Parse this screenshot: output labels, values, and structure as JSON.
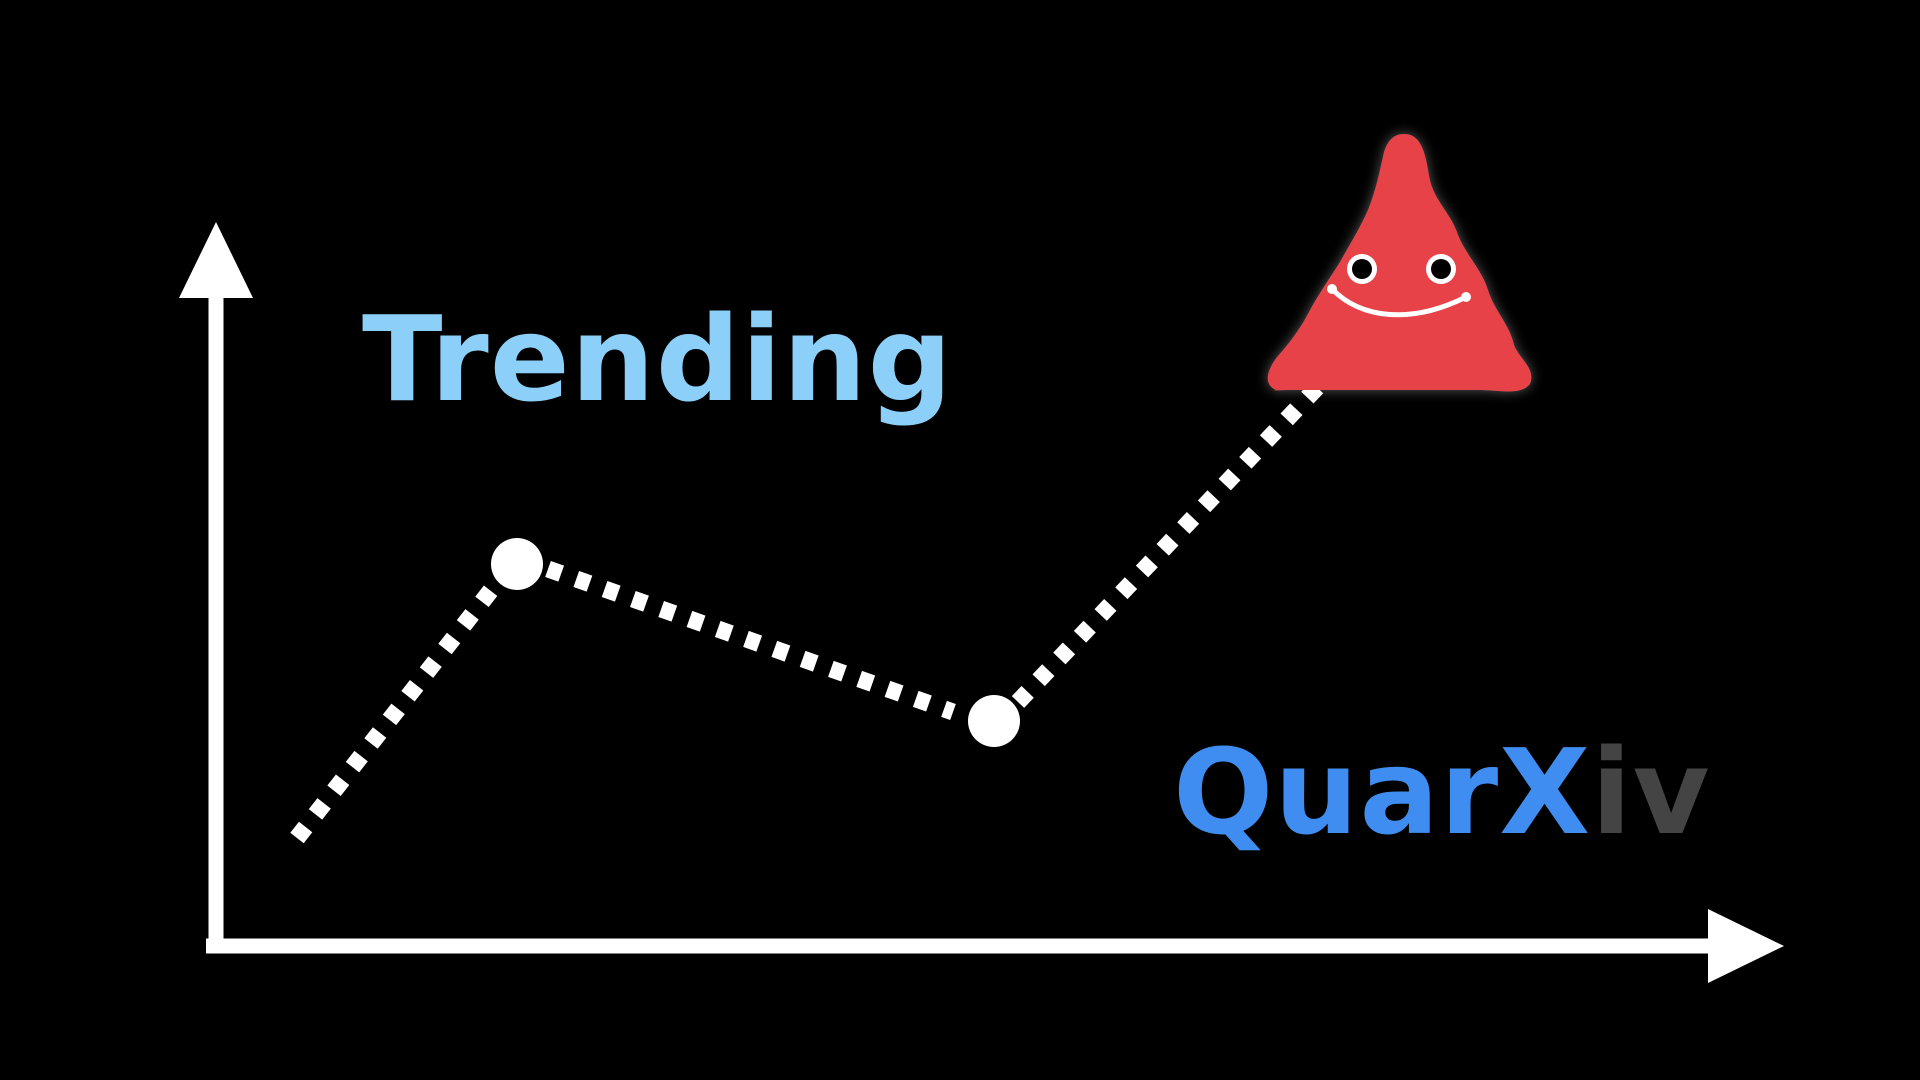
{
  "heading": "Trending",
  "brand": {
    "part_main": "QuarX",
    "part_suffix": "iv"
  },
  "colors": {
    "background": "#000000",
    "axes": "#ffffff",
    "trend_line": "#ffffff",
    "heading": "#8ccff8",
    "brand_main": "#3f8df0",
    "brand_suffix": "#444444",
    "mascot": "#e8424a"
  },
  "icons": {
    "mascot": "smiling-red-triangle-icon",
    "trend_nodes": "circle-marker"
  }
}
